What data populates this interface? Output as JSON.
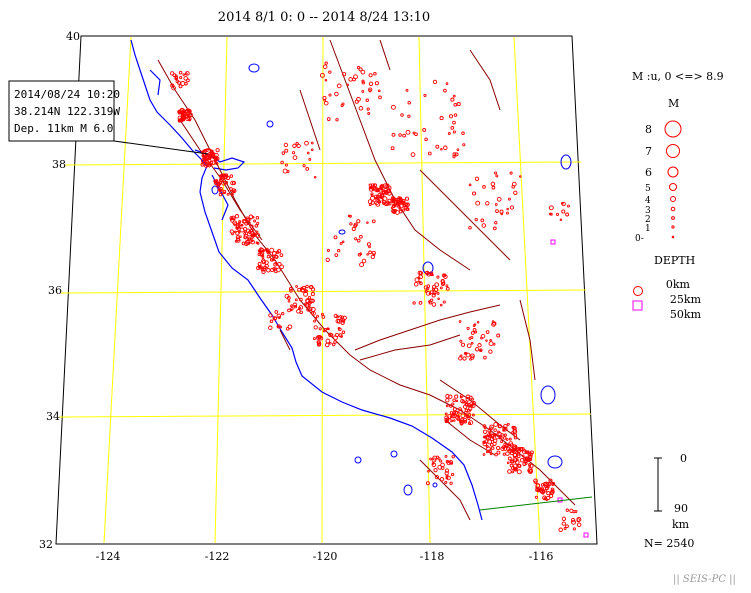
{
  "title": "2014 8/1 0: 0 -- 2014 8/24 13:10",
  "lat_labels": [
    "40",
    "38",
    "36",
    "34",
    "32"
  ],
  "lon_labels": [
    "-124",
    "-122",
    "-120",
    "-118",
    "-116"
  ],
  "event_box": {
    "line1": "2014/08/24 10:20",
    "line2": "38.214N  122.319W",
    "line3": "Dep. 11km    M 6.0"
  },
  "legend": {
    "mag_header": "M :u, 0 <=> 8.9",
    "mag_title": "M",
    "mag_levels": [
      "8",
      "7",
      "6",
      "5",
      "4",
      "3",
      "2",
      "1",
      "0-"
    ],
    "depth_title": "DEPTH",
    "depth_levels": [
      "0km",
      "25km",
      "50km"
    ],
    "depth_scale_top": "0",
    "depth_scale_bottom": "90",
    "depth_scale_unit": "km",
    "count": "N= 2540"
  },
  "footer": "|| SEIS-PC ||",
  "colors": {
    "grid": "#ffff00",
    "coast": "#0000ff",
    "fault": "#8b0000",
    "event_shallow": "#ff0000",
    "event_deep": "#ff00ff",
    "profile_line": "#008000"
  }
}
